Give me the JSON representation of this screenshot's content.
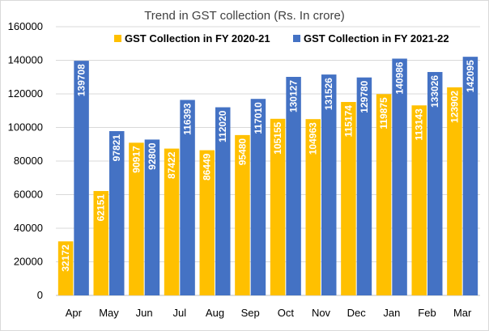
{
  "chart_data": {
    "type": "bar",
    "title": "Trend in GST collection (Rs. In crore)",
    "xlabel": "",
    "ylabel": "",
    "ylim": [
      0,
      160000
    ],
    "yticks": [
      0,
      20000,
      40000,
      60000,
      80000,
      100000,
      120000,
      140000,
      160000
    ],
    "grid": true,
    "legend_position": "top",
    "data_labels": true,
    "categories": [
      "Apr",
      "May",
      "Jun",
      "Jul",
      "Aug",
      "Sep",
      "Oct",
      "Nov",
      "Dec",
      "Jan",
      "Feb",
      "Mar"
    ],
    "series": [
      {
        "name": "GST Collection in FY 2020-21",
        "color": "#FFC000",
        "values": [
          32172,
          62151,
          90917,
          87422,
          86449,
          95480,
          105155,
          104963,
          115174,
          119875,
          113143,
          123902
        ]
      },
      {
        "name": "GST Collection in FY 2021-22",
        "color": "#4472C4",
        "values": [
          139708,
          97821,
          92800,
          116393,
          112020,
          117010,
          130127,
          131526,
          129780,
          140986,
          133026,
          142095
        ]
      }
    ]
  }
}
